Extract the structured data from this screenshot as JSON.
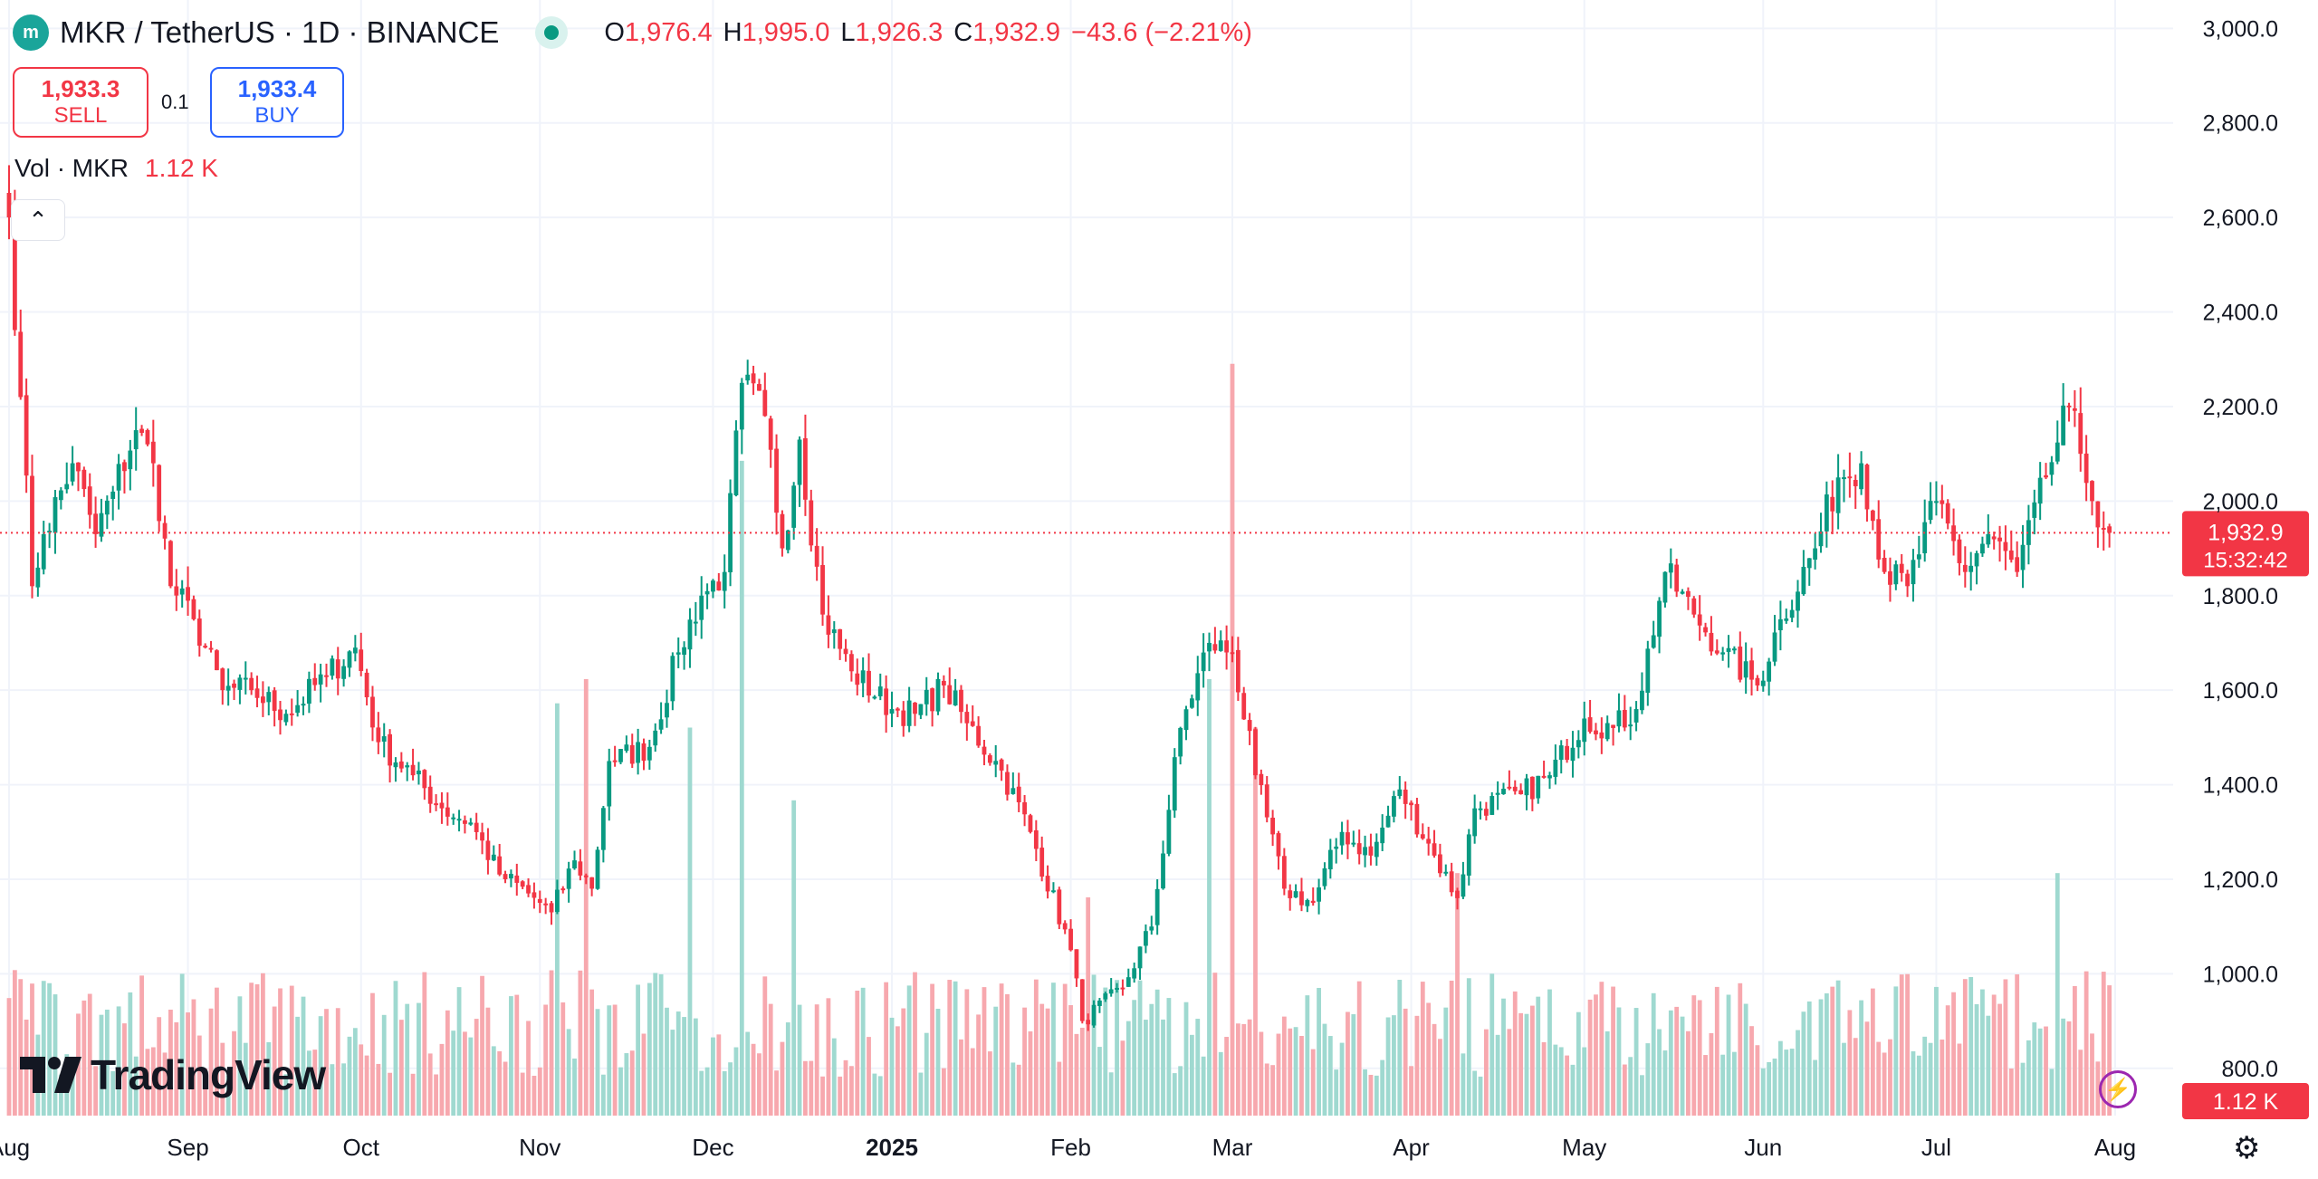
{
  "header": {
    "symbol": "MKR / TetherUS · 1D · BINANCE",
    "logo_text": "m",
    "open_label": "O",
    "open": "1,976.4",
    "high_label": "H",
    "high": "1,995.0",
    "low_label": "L",
    "low": "1,926.3",
    "close_label": "C",
    "close": "1,932.9",
    "change": "−43.6 (−2.21%)"
  },
  "trade": {
    "sell_price": "1,933.3",
    "sell_label": "SELL",
    "spread": "0.1",
    "buy_price": "1,933.4",
    "buy_label": "BUY"
  },
  "volume_legend": {
    "label": "Vol · MKR",
    "value": "1.12 K"
  },
  "branding": {
    "name": "TradingView"
  },
  "last_price_tag": {
    "price": "1,932.9",
    "countdown": "15:32:42"
  },
  "volume_tag": "1.12 K",
  "colors": {
    "up": "#089981",
    "down": "#f23645",
    "up_volume": "#9fd9d0",
    "down_volume": "#f7a8ae",
    "grid": "#f0f3fa"
  },
  "chart_data": {
    "type": "candlestick",
    "ylim": [
      700,
      3060
    ],
    "y_ticks": [
      800,
      1000,
      1200,
      1400,
      1600,
      1800,
      2000,
      2200,
      2400,
      2600,
      2800,
      3000
    ],
    "y_tick_labels": [
      "800.0",
      "1,000.0",
      "1,200.0",
      "1,400.0",
      "1,600.0",
      "1,800.0",
      "2,000.0",
      "2,200.0",
      "2,400.0",
      "2,600.0",
      "2,800.0",
      "3,000.0"
    ],
    "x_start": "2024-08-01",
    "x_end": "2025-08-01",
    "x_ticks": [
      {
        "date": "2024-08-01",
        "label": "Aug",
        "bold": false
      },
      {
        "date": "2024-09-01",
        "label": "Sep",
        "bold": false
      },
      {
        "date": "2024-10-01",
        "label": "Oct",
        "bold": false
      },
      {
        "date": "2024-11-01",
        "label": "Nov",
        "bold": false
      },
      {
        "date": "2024-12-01",
        "label": "Dec",
        "bold": false
      },
      {
        "date": "2025-01-01",
        "label": "2025",
        "bold": true
      },
      {
        "date": "2025-02-01",
        "label": "Feb",
        "bold": false
      },
      {
        "date": "2025-03-01",
        "label": "Mar",
        "bold": false
      },
      {
        "date": "2025-04-01",
        "label": "Apr",
        "bold": false
      },
      {
        "date": "2025-05-01",
        "label": "May",
        "bold": false
      },
      {
        "date": "2025-06-01",
        "label": "Jun",
        "bold": false
      },
      {
        "date": "2025-07-01",
        "label": "Jul",
        "bold": false
      },
      {
        "date": "2025-08-01",
        "label": "Aug",
        "bold": false
      }
    ],
    "last_price": 1932.9,
    "close_anchors": [
      [
        "2024-08-01",
        2600
      ],
      [
        "2024-08-03",
        2220
      ],
      [
        "2024-08-05",
        1820
      ],
      [
        "2024-08-07",
        1930
      ],
      [
        "2024-08-12",
        2080
      ],
      [
        "2024-08-16",
        1930
      ],
      [
        "2024-08-19",
        2020
      ],
      [
        "2024-08-23",
        2150
      ],
      [
        "2024-08-26",
        2080
      ],
      [
        "2024-08-29",
        1820
      ],
      [
        "2024-09-02",
        1750
      ],
      [
        "2024-09-07",
        1600
      ],
      [
        "2024-09-12",
        1600
      ],
      [
        "2024-09-18",
        1550
      ],
      [
        "2024-09-25",
        1630
      ],
      [
        "2024-09-30",
        1690
      ],
      [
        "2024-10-04",
        1490
      ],
      [
        "2024-10-10",
        1420
      ],
      [
        "2024-10-15",
        1350
      ],
      [
        "2024-10-20",
        1320
      ],
      [
        "2024-10-25",
        1210
      ],
      [
        "2024-10-30",
        1170
      ],
      [
        "2024-11-03",
        1130
      ],
      [
        "2024-11-07",
        1240
      ],
      [
        "2024-11-10",
        1180
      ],
      [
        "2024-11-13",
        1450
      ],
      [
        "2024-11-20",
        1480
      ],
      [
        "2024-11-25",
        1680
      ],
      [
        "2024-11-29",
        1800
      ],
      [
        "2024-12-03",
        1850
      ],
      [
        "2024-12-06",
        2250
      ],
      [
        "2024-12-10",
        2180
      ],
      [
        "2024-12-13",
        1900
      ],
      [
        "2024-12-16",
        2130
      ],
      [
        "2024-12-20",
        1760
      ],
      [
        "2024-12-25",
        1640
      ],
      [
        "2025-01-01",
        1560
      ],
      [
        "2025-01-05",
        1550
      ],
      [
        "2025-01-10",
        1610
      ],
      [
        "2025-01-14",
        1530
      ],
      [
        "2025-01-20",
        1430
      ],
      [
        "2025-01-25",
        1300
      ],
      [
        "2025-02-01",
        1050
      ],
      [
        "2025-02-03",
        900
      ],
      [
        "2025-02-10",
        970
      ],
      [
        "2025-02-15",
        1100
      ],
      [
        "2025-02-20",
        1520
      ],
      [
        "2025-02-25",
        1700
      ],
      [
        "2025-03-01",
        1680
      ],
      [
        "2025-03-05",
        1420
      ],
      [
        "2025-03-10",
        1180
      ],
      [
        "2025-03-15",
        1150
      ],
      [
        "2025-03-20",
        1300
      ],
      [
        "2025-03-25",
        1250
      ],
      [
        "2025-03-30",
        1390
      ],
      [
        "2025-04-05",
        1250
      ],
      [
        "2025-04-09",
        1160
      ],
      [
        "2025-04-12",
        1350
      ],
      [
        "2025-04-20",
        1380
      ],
      [
        "2025-04-25",
        1420
      ],
      [
        "2025-05-01",
        1540
      ],
      [
        "2025-05-06",
        1520
      ],
      [
        "2025-05-10",
        1560
      ],
      [
        "2025-05-15",
        1850
      ],
      [
        "2025-05-20",
        1760
      ],
      [
        "2025-05-25",
        1680
      ],
      [
        "2025-05-31",
        1610
      ],
      [
        "2025-06-04",
        1750
      ],
      [
        "2025-06-10",
        1900
      ],
      [
        "2025-06-14",
        2050
      ],
      [
        "2025-06-18",
        2080
      ],
      [
        "2025-06-22",
        1850
      ],
      [
        "2025-06-26",
        1820
      ],
      [
        "2025-07-01",
        2000
      ],
      [
        "2025-07-06",
        1850
      ],
      [
        "2025-07-10",
        1930
      ],
      [
        "2025-07-15",
        1850
      ],
      [
        "2025-07-20",
        2050
      ],
      [
        "2025-07-24",
        2200
      ],
      [
        "2025-07-26",
        2100
      ],
      [
        "2025-07-28",
        2000
      ],
      [
        "2025-07-31",
        1932.9
      ]
    ],
    "volume_ylim": [
      0,
      2300
    ],
    "volume_spikes": [
      {
        "date": "2024-08-02",
        "value": 300
      },
      {
        "date": "2024-08-09",
        "value": 250
      },
      {
        "date": "2024-11-04",
        "value": 850
      },
      {
        "date": "2024-11-09",
        "value": 900
      },
      {
        "date": "2024-11-27",
        "value": 800
      },
      {
        "date": "2024-12-06",
        "value": 1350
      },
      {
        "date": "2024-12-15",
        "value": 650
      },
      {
        "date": "2025-02-04",
        "value": 450
      },
      {
        "date": "2025-02-25",
        "value": 900
      },
      {
        "date": "2025-03-01",
        "value": 1550
      },
      {
        "date": "2025-03-05",
        "value": 800
      },
      {
        "date": "2025-04-09",
        "value": 500
      },
      {
        "date": "2025-07-22",
        "value": 500
      }
    ]
  }
}
